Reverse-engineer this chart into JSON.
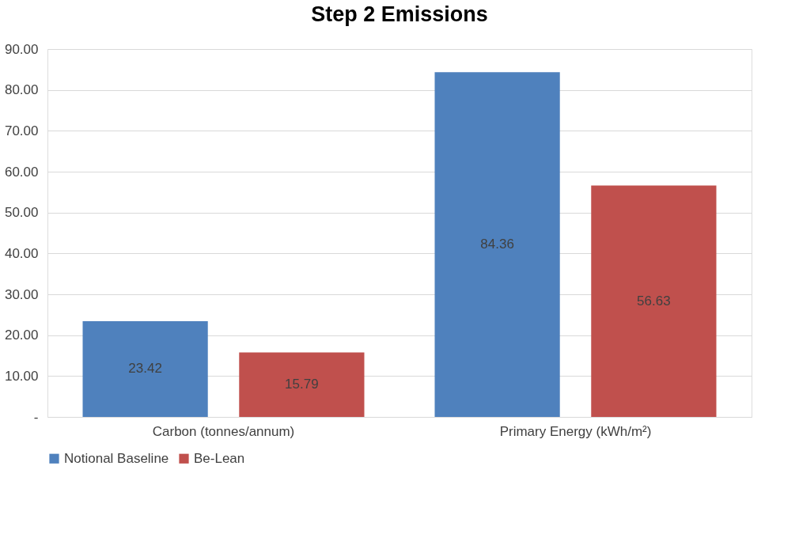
{
  "chart_data": {
    "type": "bar",
    "title": "Step 2 Emissions",
    "categories": [
      "Carbon (tonnes/annum)",
      "Primary Energy  (kWh/m²)"
    ],
    "series": [
      {
        "name": "Notional Baseline",
        "color": "#4f81bd",
        "values": [
          23.42,
          84.36
        ]
      },
      {
        "name": "Be-Lean",
        "color": "#c0504d",
        "values": [
          15.79,
          56.63
        ]
      }
    ],
    "ylim": [
      0,
      90
    ],
    "yticks": [
      {
        "value": 0,
        "label": "-"
      },
      {
        "value": 10,
        "label": "10.00"
      },
      {
        "value": 20,
        "label": "20.00"
      },
      {
        "value": 30,
        "label": "30.00"
      },
      {
        "value": 40,
        "label": "40.00"
      },
      {
        "value": 50,
        "label": "50.00"
      },
      {
        "value": 60,
        "label": "60.00"
      },
      {
        "value": 70,
        "label": "70.00"
      },
      {
        "value": 80,
        "label": "80.00"
      },
      {
        "value": 90,
        "label": "90.00"
      }
    ],
    "grid": "y",
    "legend": "bottom",
    "data_labels": true
  }
}
